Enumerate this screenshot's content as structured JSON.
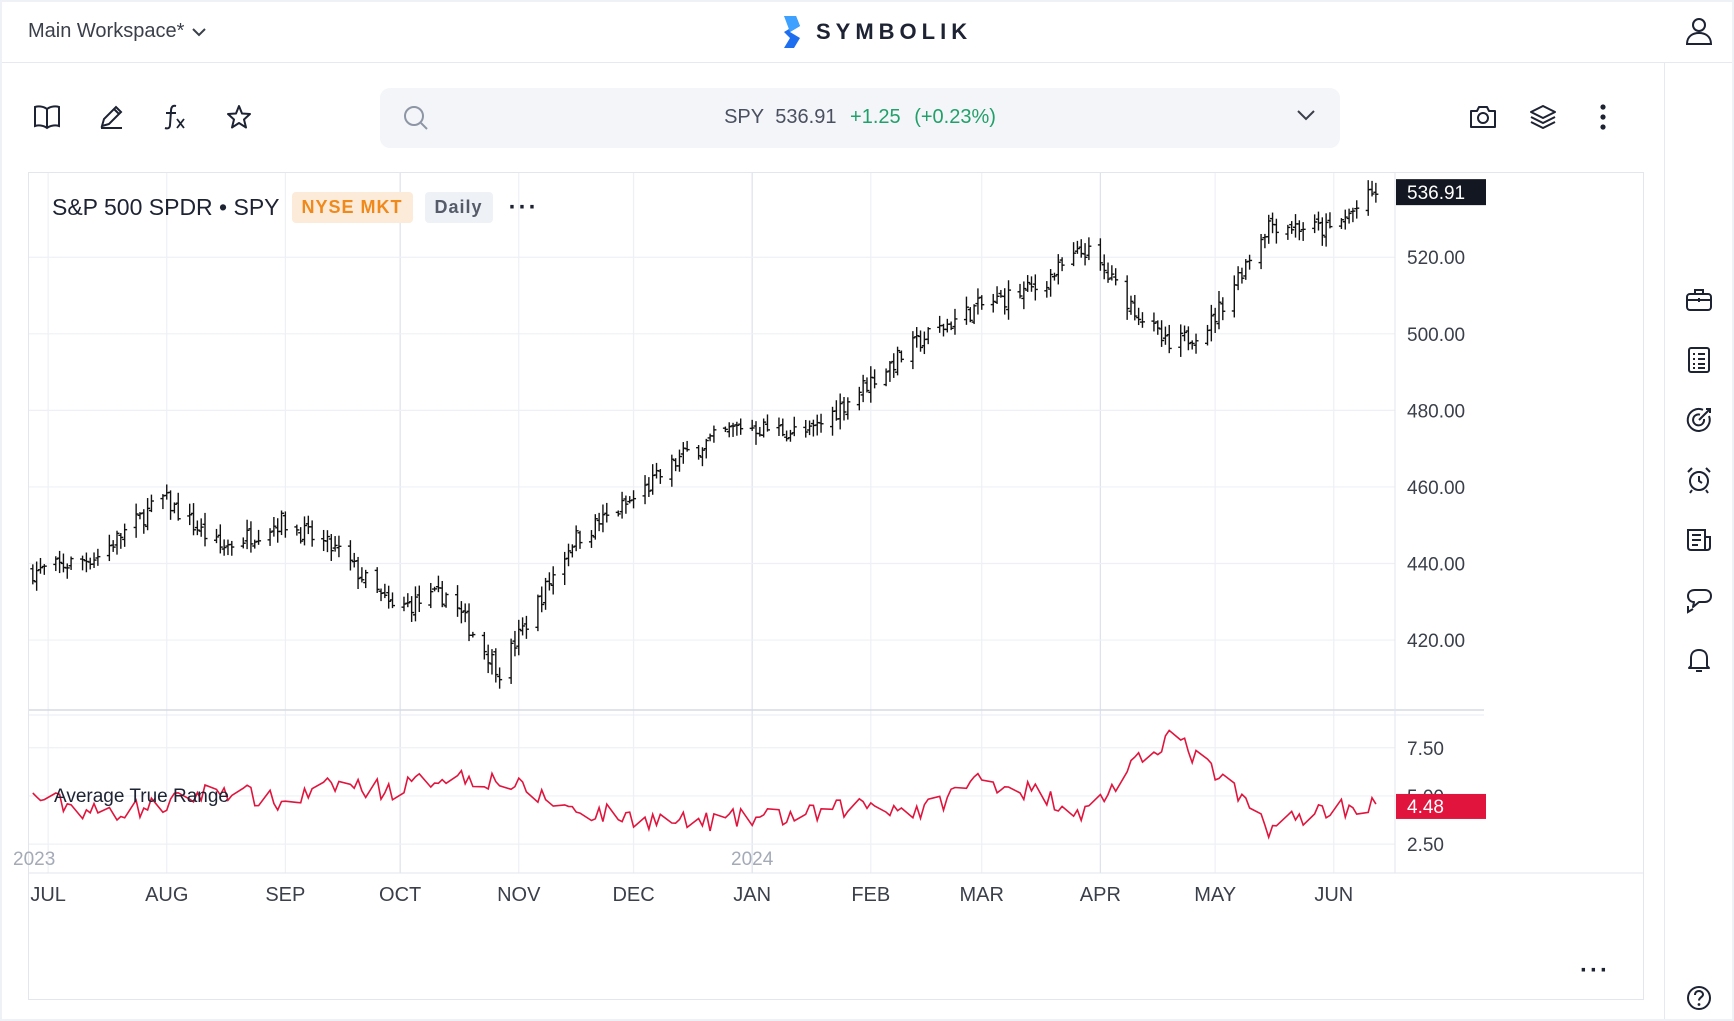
{
  "workspace": {
    "label": "Main Workspace*"
  },
  "brand": {
    "name": "SYMBOLIK"
  },
  "search": {
    "symbol": "SPY",
    "price": "536.91",
    "change": "+1.25",
    "change_pct": "(+0.23%)"
  },
  "chart": {
    "name": "S&P 500 SPDR • SPY",
    "exchange": "NYSE MKT",
    "interval": "Daily",
    "last_price_label": "536.91",
    "price_axis": [
      "520.00",
      "500.00",
      "480.00",
      "460.00",
      "440.00",
      "420.00"
    ],
    "indicator": {
      "name": "Average True Range",
      "axis": [
        "7.50",
        "5.00",
        "2.50"
      ],
      "last_label": "4.48"
    },
    "months": [
      "JUL",
      "AUG",
      "SEP",
      "OCT",
      "NOV",
      "DEC",
      "JAN",
      "FEB",
      "MAR",
      "APR",
      "MAY",
      "JUN"
    ],
    "years": [
      "2023",
      "2024"
    ]
  },
  "colors": {
    "up": "#22a06b",
    "exchange_badge": "#f0891c",
    "atr_line": "#e0143c",
    "price_tag": "#131722"
  },
  "chart_data": [
    {
      "type": "line",
      "style": "ohlc-bars",
      "title": "S&P 500 SPDR • SPY",
      "x": [
        "2023-06-29",
        "2023-07-14",
        "2023-07-31",
        "2023-08-15",
        "2023-08-31",
        "2023-09-15",
        "2023-09-29",
        "2023-10-13",
        "2023-10-27",
        "2023-11-15",
        "2023-11-30",
        "2023-12-15",
        "2023-12-29",
        "2024-01-16",
        "2024-01-31",
        "2024-02-15",
        "2024-02-29",
        "2024-03-15",
        "2024-03-28",
        "2024-04-19",
        "2024-04-30",
        "2024-05-15",
        "2024-05-31",
        "2024-06-12"
      ],
      "series": [
        {
          "values": [
            438,
            442,
            457,
            444,
            451,
            443,
            428,
            432,
            412,
            446,
            456,
            469,
            476,
            474,
            487,
            499,
            507,
            512,
            522,
            496,
            503,
            529,
            527,
            537
          ]
        }
      ],
      "ylim": [
        402,
        542
      ],
      "y_ticks": [
        420,
        440,
        460,
        480,
        500,
        520
      ]
    },
    {
      "type": "line",
      "title": "Average True Range",
      "x": [
        "2023-06-29",
        "2023-07-14",
        "2023-07-31",
        "2023-08-15",
        "2023-08-31",
        "2023-09-15",
        "2023-09-29",
        "2023-10-13",
        "2023-10-27",
        "2023-11-15",
        "2023-11-30",
        "2023-12-15",
        "2023-12-29",
        "2024-01-16",
        "2024-01-31",
        "2024-02-15",
        "2024-02-29",
        "2024-03-15",
        "2024-03-28",
        "2024-04-19",
        "2024-04-30",
        "2024-05-15",
        "2024-05-31",
        "2024-06-12"
      ],
      "series": [
        {
          "values": [
            4.9,
            4.1,
            4.5,
            5.4,
            4.6,
            5.6,
            5.3,
            6.1,
            5.8,
            4.3,
            3.9,
            3.6,
            3.8,
            4.0,
            4.6,
            4.2,
            5.9,
            5.2,
            4.1,
            8.2,
            6.3,
            3.4,
            4.4,
            4.48
          ]
        }
      ],
      "ylim": [
        1.0,
        9.2
      ],
      "y_ticks": [
        2.5,
        5.0,
        7.5
      ]
    }
  ]
}
